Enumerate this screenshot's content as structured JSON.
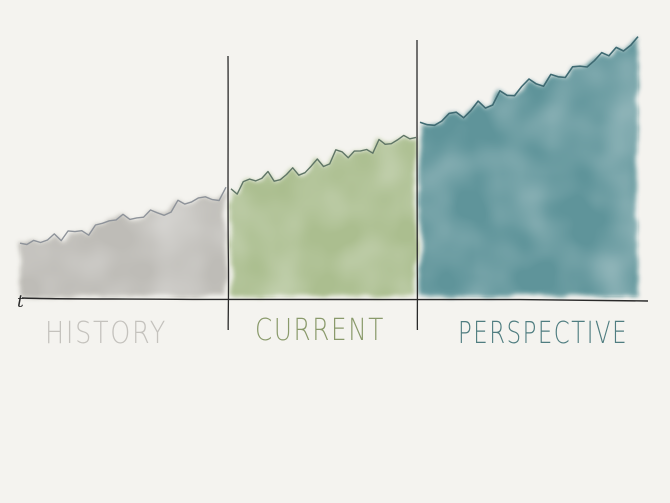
{
  "axis": {
    "time_label": "t"
  },
  "segments": [
    {
      "id": "history",
      "label": "HISTORY",
      "fill": "#b9b7b1",
      "text_color": "#c4c2bd",
      "stroke": "#8e939a"
    },
    {
      "id": "current",
      "label": "CURRENT",
      "fill": "#9fb57f",
      "text_color": "#8a9a6b",
      "stroke": "#5f7566"
    },
    {
      "id": "perspective",
      "label": "PERSPECTIVE",
      "fill": "#4f8a91",
      "text_color": "#4f7d80",
      "stroke": "#3f6a72"
    }
  ],
  "colors": {
    "background": "#f4f3ef",
    "ink": "#2a2a2a"
  }
}
